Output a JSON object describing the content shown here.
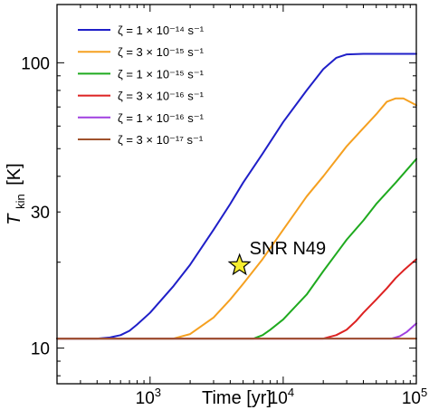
{
  "chart_data": {
    "type": "line",
    "x_scale": "log",
    "y_scale": "log",
    "xlim": [
      200,
      100000
    ],
    "ylim": [
      7.5,
      160
    ],
    "xlabel": "Time [yr]",
    "ylabel_main": "T",
    "ylabel_sub": "kin",
    "ylabel_unit": "[K]",
    "x_ticks": [
      {
        "value": 1000,
        "base": "10",
        "exp": "3"
      },
      {
        "value": 10000,
        "base": "10",
        "exp": "4"
      },
      {
        "value": 100000,
        "base": "10",
        "exp": "5"
      }
    ],
    "y_ticks": [
      {
        "value": 10,
        "label": "10"
      },
      {
        "value": 30,
        "label": "30"
      },
      {
        "value": 100,
        "label": "100"
      }
    ],
    "legend_position": "top-left",
    "series": [
      {
        "name": "ζ = 1 × 10⁻¹⁴ s⁻¹",
        "color": "#1f1fc8",
        "points": [
          [
            200,
            10.8
          ],
          [
            400,
            10.8
          ],
          [
            500,
            10.9
          ],
          [
            600,
            11.1
          ],
          [
            700,
            11.5
          ],
          [
            800,
            12.1
          ],
          [
            1000,
            13.3
          ],
          [
            1500,
            16.5
          ],
          [
            2000,
            19.6
          ],
          [
            3000,
            26
          ],
          [
            4000,
            32
          ],
          [
            5000,
            38
          ],
          [
            7000,
            48
          ],
          [
            10000,
            62
          ],
          [
            15000,
            80
          ],
          [
            20000,
            95
          ],
          [
            25000,
            104
          ],
          [
            30000,
            107
          ],
          [
            40000,
            107.5
          ],
          [
            100000,
            107.5
          ]
        ]
      },
      {
        "name": "ζ = 3 × 10⁻¹⁵ s⁻¹",
        "color": "#f5a020",
        "points": [
          [
            200,
            10.8
          ],
          [
            1500,
            10.8
          ],
          [
            2000,
            11.2
          ],
          [
            3000,
            12.8
          ],
          [
            4000,
            14.8
          ],
          [
            5000,
            16.8
          ],
          [
            7000,
            20.5
          ],
          [
            10000,
            26
          ],
          [
            15000,
            34
          ],
          [
            20000,
            40
          ],
          [
            30000,
            51
          ],
          [
            40000,
            59
          ],
          [
            50000,
            66
          ],
          [
            60000,
            73
          ],
          [
            70000,
            75
          ],
          [
            80000,
            75
          ],
          [
            100000,
            71
          ]
        ]
      },
      {
        "name": "ζ = 1 × 10⁻¹⁵ s⁻¹",
        "color": "#1faa1f",
        "points": [
          [
            200,
            10.8
          ],
          [
            6000,
            10.8
          ],
          [
            7000,
            11.1
          ],
          [
            8000,
            11.6
          ],
          [
            10000,
            12.6
          ],
          [
            15000,
            15.4
          ],
          [
            20000,
            18.6
          ],
          [
            25000,
            21.4
          ],
          [
            30000,
            24
          ],
          [
            40000,
            28
          ],
          [
            50000,
            32
          ],
          [
            70000,
            38
          ],
          [
            100000,
            46
          ]
        ]
      },
      {
        "name": "ζ = 3 × 10⁻¹⁶ s⁻¹",
        "color": "#dd2222",
        "points": [
          [
            200,
            10.8
          ],
          [
            20000,
            10.8
          ],
          [
            25000,
            11.1
          ],
          [
            30000,
            11.6
          ],
          [
            35000,
            12.4
          ],
          [
            40000,
            13.3
          ],
          [
            50000,
            14.8
          ],
          [
            60000,
            16.2
          ],
          [
            70000,
            17.6
          ],
          [
            80000,
            18.7
          ],
          [
            100000,
            20.5
          ]
        ]
      },
      {
        "name": "ζ = 1 × 10⁻¹⁶ s⁻¹",
        "color": "#a040e0",
        "points": [
          [
            200,
            10.8
          ],
          [
            65000,
            10.8
          ],
          [
            75000,
            11.0
          ],
          [
            85000,
            11.4
          ],
          [
            100000,
            12.2
          ]
        ]
      },
      {
        "name": "ζ = 3 × 10⁻¹⁷ s⁻¹",
        "color": "#a0522d",
        "points": [
          [
            200,
            10.8
          ],
          [
            100000,
            10.8
          ]
        ]
      }
    ],
    "annotation": {
      "text": "SNR N49",
      "x": 4700,
      "y": 19.5,
      "marker": "star",
      "marker_color": "#f5ed30"
    }
  }
}
